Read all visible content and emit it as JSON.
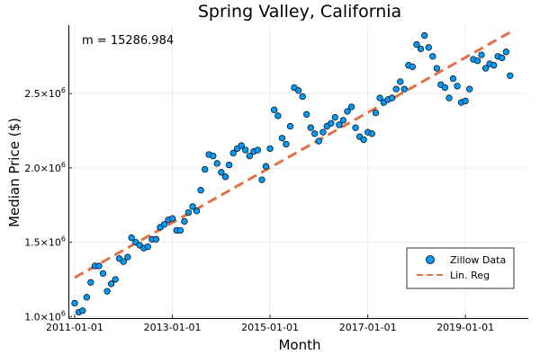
{
  "chart_data": {
    "type": "scatter",
    "title": "Spring Valley, California",
    "xlabel": "Month",
    "ylabel": "Median Price ($)",
    "annotation": "m = 15286.984",
    "x_ticks": [
      "2011-01-01",
      "2013-01-01",
      "2015-01-01",
      "2017-01-01",
      "2019-01-01"
    ],
    "y_ticks": [
      {
        "base": "1.0×10",
        "exp": "6",
        "value": 1000000
      },
      {
        "base": "1.5×10",
        "exp": "6",
        "value": 1500000
      },
      {
        "base": "2.0×10",
        "exp": "6",
        "value": 2000000
      },
      {
        "base": "2.5×10",
        "exp": "6",
        "value": 2500000
      }
    ],
    "xlim": [
      "2010-11-15",
      "2020-04-15"
    ],
    "ylim": [
      990000,
      2960000
    ],
    "grid": true,
    "legend_position": "bottom-right",
    "colors": {
      "points": "#009AFA",
      "regression": "#E26F46",
      "grid": "#e6e6e6"
    },
    "series": [
      {
        "name": "Zillow Data",
        "kind": "scatter",
        "x": [
          "2011-01-01",
          "2011-02-01",
          "2011-03-01",
          "2011-04-01",
          "2011-05-01",
          "2011-06-01",
          "2011-07-01",
          "2011-08-01",
          "2011-09-01",
          "2011-10-01",
          "2011-11-01",
          "2011-12-01",
          "2012-01-01",
          "2012-02-01",
          "2012-03-01",
          "2012-04-01",
          "2012-05-01",
          "2012-06-01",
          "2012-07-01",
          "2012-08-01",
          "2012-09-01",
          "2012-10-01",
          "2012-11-01",
          "2012-12-01",
          "2013-01-01",
          "2013-02-01",
          "2013-03-01",
          "2013-04-01",
          "2013-05-01",
          "2013-06-01",
          "2013-07-01",
          "2013-08-01",
          "2013-09-01",
          "2013-10-01",
          "2013-11-01",
          "2013-12-01",
          "2014-01-01",
          "2014-02-01",
          "2014-03-01",
          "2014-04-01",
          "2014-05-01",
          "2014-06-01",
          "2014-07-01",
          "2014-08-01",
          "2014-09-01",
          "2014-10-01",
          "2014-11-01",
          "2014-12-01",
          "2015-01-01",
          "2015-02-01",
          "2015-03-01",
          "2015-04-01",
          "2015-05-01",
          "2015-06-01",
          "2015-07-01",
          "2015-08-01",
          "2015-09-01",
          "2015-10-01",
          "2015-11-01",
          "2015-12-01",
          "2016-01-01",
          "2016-02-01",
          "2016-03-01",
          "2016-04-01",
          "2016-05-01",
          "2016-06-01",
          "2016-07-01",
          "2016-08-01",
          "2016-09-01",
          "2016-10-01",
          "2016-11-01",
          "2016-12-01",
          "2017-01-01",
          "2017-02-01",
          "2017-03-01",
          "2017-04-01",
          "2017-05-01",
          "2017-06-01",
          "2017-07-01",
          "2017-08-01",
          "2017-09-01",
          "2017-10-01",
          "2017-11-01",
          "2017-12-01",
          "2018-01-01",
          "2018-02-01",
          "2018-03-01",
          "2018-04-01",
          "2018-05-01",
          "2018-06-01",
          "2018-07-01",
          "2018-08-01",
          "2018-09-01",
          "2018-10-01",
          "2018-11-01",
          "2018-12-01",
          "2019-01-01",
          "2019-02-01",
          "2019-03-01",
          "2019-04-01",
          "2019-05-01",
          "2019-06-01",
          "2019-07-01",
          "2019-08-01",
          "2019-09-01",
          "2019-10-01",
          "2019-11-01",
          "2019-12-01"
        ],
        "y": [
          1090000,
          1030000,
          1040000,
          1130000,
          1230000,
          1340000,
          1340000,
          1290000,
          1170000,
          1220000,
          1250000,
          1390000,
          1370000,
          1400000,
          1530000,
          1500000,
          1480000,
          1460000,
          1470000,
          1520000,
          1520000,
          1600000,
          1620000,
          1650000,
          1660000,
          1580000,
          1580000,
          1640000,
          1700000,
          1740000,
          1710000,
          1850000,
          1990000,
          2090000,
          2080000,
          2030000,
          1970000,
          1940000,
          2020000,
          2100000,
          2130000,
          2150000,
          2120000,
          2080000,
          2110000,
          2120000,
          1920000,
          2010000,
          2130000,
          2390000,
          2350000,
          2200000,
          2160000,
          2280000,
          2540000,
          2520000,
          2480000,
          2360000,
          2270000,
          2230000,
          2180000,
          2240000,
          2280000,
          2300000,
          2340000,
          2290000,
          2320000,
          2380000,
          2410000,
          2270000,
          2210000,
          2190000,
          2240000,
          2230000,
          2370000,
          2470000,
          2440000,
          2460000,
          2470000,
          2530000,
          2580000,
          2530000,
          2690000,
          2680000,
          2830000,
          2800000,
          2890000,
          2810000,
          2750000,
          2670000,
          2560000,
          2540000,
          2470000,
          2600000,
          2550000,
          2440000,
          2450000,
          2530000,
          2730000,
          2720000,
          2760000,
          2670000,
          2700000,
          2690000,
          2750000,
          2740000,
          2780000,
          2620000
        ]
      },
      {
        "name": "Lin. Reg",
        "kind": "line",
        "slope_per_month": 15286.984,
        "x": [
          "2011-01-01",
          "2019-12-01"
        ],
        "y": [
          1262000,
          2912000
        ]
      }
    ]
  }
}
